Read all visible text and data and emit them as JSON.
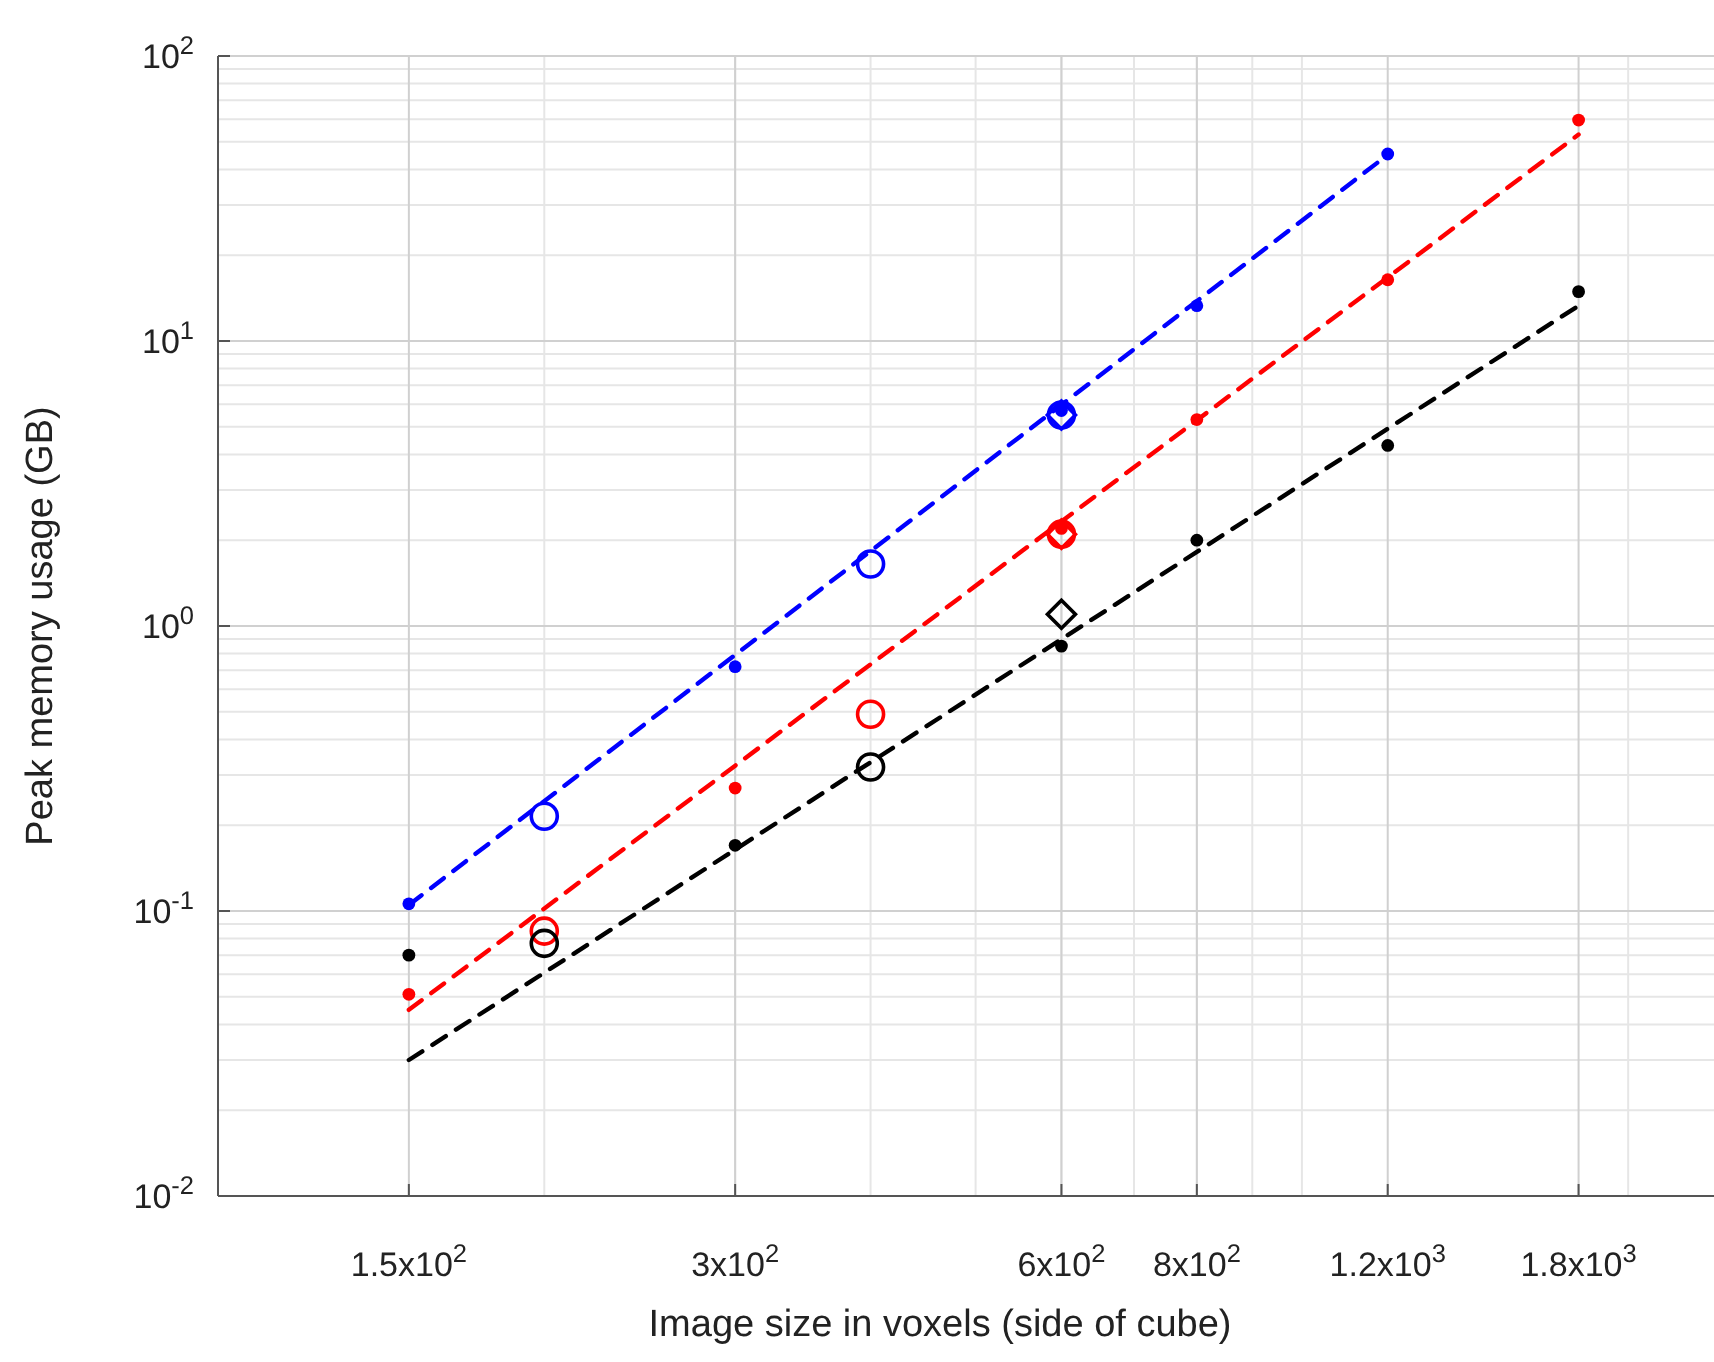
{
  "chart_data": {
    "type": "scatter",
    "xlabel": "Image size in voxels (side of cube)",
    "ylabel": "Peak memory usage (GB)",
    "log": "xy",
    "grid": true,
    "xlim": [
      100,
      2400
    ],
    "ylim": [
      0.01,
      100
    ],
    "xticks": [
      {
        "value": 150,
        "label": "1.5x10$^{2}$"
      },
      {
        "value": 300,
        "label": "3x10$^{2}$"
      },
      {
        "value": 600,
        "label": "6x10$^{2}$"
      },
      {
        "value": 800,
        "label": "8x10$^{2}$"
      },
      {
        "value": 1200,
        "label": "1.2x10$^{3}$"
      },
      {
        "value": 1800,
        "label": "1.8x10$^{3}$"
      }
    ],
    "yticks": [
      {
        "value": 0.01,
        "label": "10$^{-2}$"
      },
      {
        "value": 0.1,
        "label": "10$^{-1}$"
      },
      {
        "value": 1,
        "label": "10$^{0}$"
      },
      {
        "value": 10,
        "label": "10$^{1}$"
      },
      {
        "value": 100,
        "label": "10$^{2}$"
      }
    ],
    "series": [
      {
        "type": "line",
        "line_style": "dashed",
        "color": "#0000ff",
        "x": [
          150,
          1200
        ],
        "values": [
          0.105,
          45
        ]
      },
      {
        "type": "line",
        "line_style": "dashed",
        "color": "#ff0000",
        "x": [
          150,
          1800
        ],
        "values": [
          0.045,
          53
        ]
      },
      {
        "type": "line",
        "line_style": "dashed",
        "color": "#000000",
        "x": [
          150,
          1800
        ],
        "values": [
          0.03,
          13.3
        ]
      },
      {
        "color": "#0000ff",
        "x": [
          150,
          300,
          600,
          800,
          1200
        ],
        "values": [
          0.106,
          0.72,
          5.7,
          13.3,
          45.3
        ]
      },
      {
        "color": "#ff0000",
        "x": [
          150,
          300,
          600,
          800,
          1200,
          1800
        ],
        "values": [
          0.051,
          0.27,
          2.2,
          5.3,
          16.4,
          59.6
        ]
      },
      {
        "color": "#000000",
        "x": [
          150,
          300,
          600,
          800,
          1200,
          1800
        ],
        "values": [
          0.07,
          0.17,
          0.85,
          2.0,
          4.3,
          14.9
        ]
      },
      {
        "marker": "circle",
        "color": "#0000ff",
        "x": [
          200,
          400,
          600
        ],
        "values": [
          0.215,
          1.65,
          5.5
        ]
      },
      {
        "marker": "circle",
        "color": "#ff0000",
        "x": [
          200,
          400,
          600
        ],
        "values": [
          0.085,
          0.49,
          2.1
        ]
      },
      {
        "marker": "circle",
        "color": "#000000",
        "x": [
          200,
          400
        ],
        "values": [
          0.077,
          0.32
        ]
      },
      {
        "marker": "diamond",
        "color": "#0000ff",
        "x": [
          600
        ],
        "values": [
          5.5
        ]
      },
      {
        "marker": "diamond",
        "color": "#ff0000",
        "x": [
          600
        ],
        "values": [
          2.1
        ]
      },
      {
        "marker": "diamond",
        "color": "#000000",
        "x": [
          600
        ],
        "values": [
          1.1
        ]
      }
    ]
  }
}
